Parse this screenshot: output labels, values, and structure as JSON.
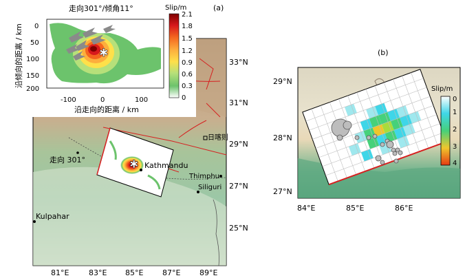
{
  "panel_a": {
    "label": "(a)",
    "inset": {
      "title": "走向301°/倾角11°",
      "y_axis_label": "沿倾向的距离 / km",
      "x_axis_label": "沿走向的距离 / km",
      "y_ticks": [
        "0",
        "50",
        "100",
        "150",
        "200"
      ],
      "x_ticks": [
        "-100",
        "0",
        "100"
      ],
      "colorbar_title": "Slip/m",
      "colorbar_ticks": [
        "2.1",
        "1.8",
        "1.5",
        "1.2",
        "0.9",
        "0.6",
        "0.3",
        "0"
      ],
      "colorbar_colors": [
        "#7f0000",
        "#d7191c",
        "#f4661f",
        "#fdae3d",
        "#fee04a",
        "#b6e07a",
        "#6cc36c",
        "#ffffff"
      ]
    },
    "lat_labels": [
      "33°N",
      "31°N",
      "29°N",
      "27°N",
      "25°N"
    ],
    "lon_labels": [
      "81°E",
      "83°E",
      "85°E",
      "87°E",
      "89°E"
    ],
    "place_labels": {
      "strike": "走向 301°",
      "kathmandu": "Kathmandu",
      "thimphu": "Thimphu",
      "siliguri": "Siliguri",
      "kulpahar": "Kulpahar",
      "rikaze": "日喀则"
    }
  },
  "panel_b": {
    "label": "(b)",
    "lat_labels": [
      "29°N",
      "28°N",
      "27°N"
    ],
    "lon_labels": [
      "84°E",
      "85°E",
      "86°E"
    ],
    "colorbar_title": "Slip/m",
    "colorbar_ticks": [
      "0",
      "1",
      "2",
      "3",
      "4"
    ],
    "colorbar_colors": [
      "#ffffff",
      "#3fd6e8",
      "#46d17a",
      "#f0c62c",
      "#e53b14"
    ]
  }
}
